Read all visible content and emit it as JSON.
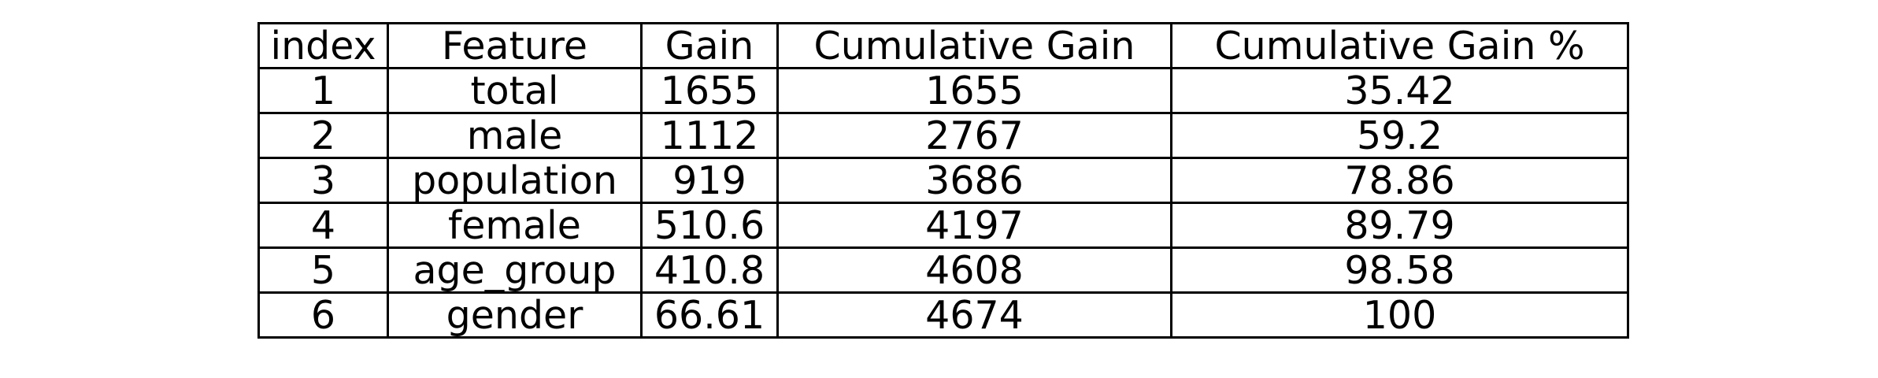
{
  "chart_data": {
    "type": "table",
    "columns": [
      "index",
      "Feature",
      "Gain",
      "Cumulative Gain",
      "Cumulative Gain %"
    ],
    "rows": [
      [
        "1",
        "total",
        "1655",
        "1655",
        "35.42"
      ],
      [
        "2",
        "male",
        "1112",
        "2767",
        "59.2"
      ],
      [
        "3",
        "population",
        "919",
        "3686",
        "78.86"
      ],
      [
        "4",
        "female",
        "510.6",
        "4197",
        "89.79"
      ],
      [
        "5",
        "age_group",
        "410.8",
        "4608",
        "98.58"
      ],
      [
        "6",
        "gender",
        "66.61",
        "4674",
        "100"
      ]
    ]
  }
}
